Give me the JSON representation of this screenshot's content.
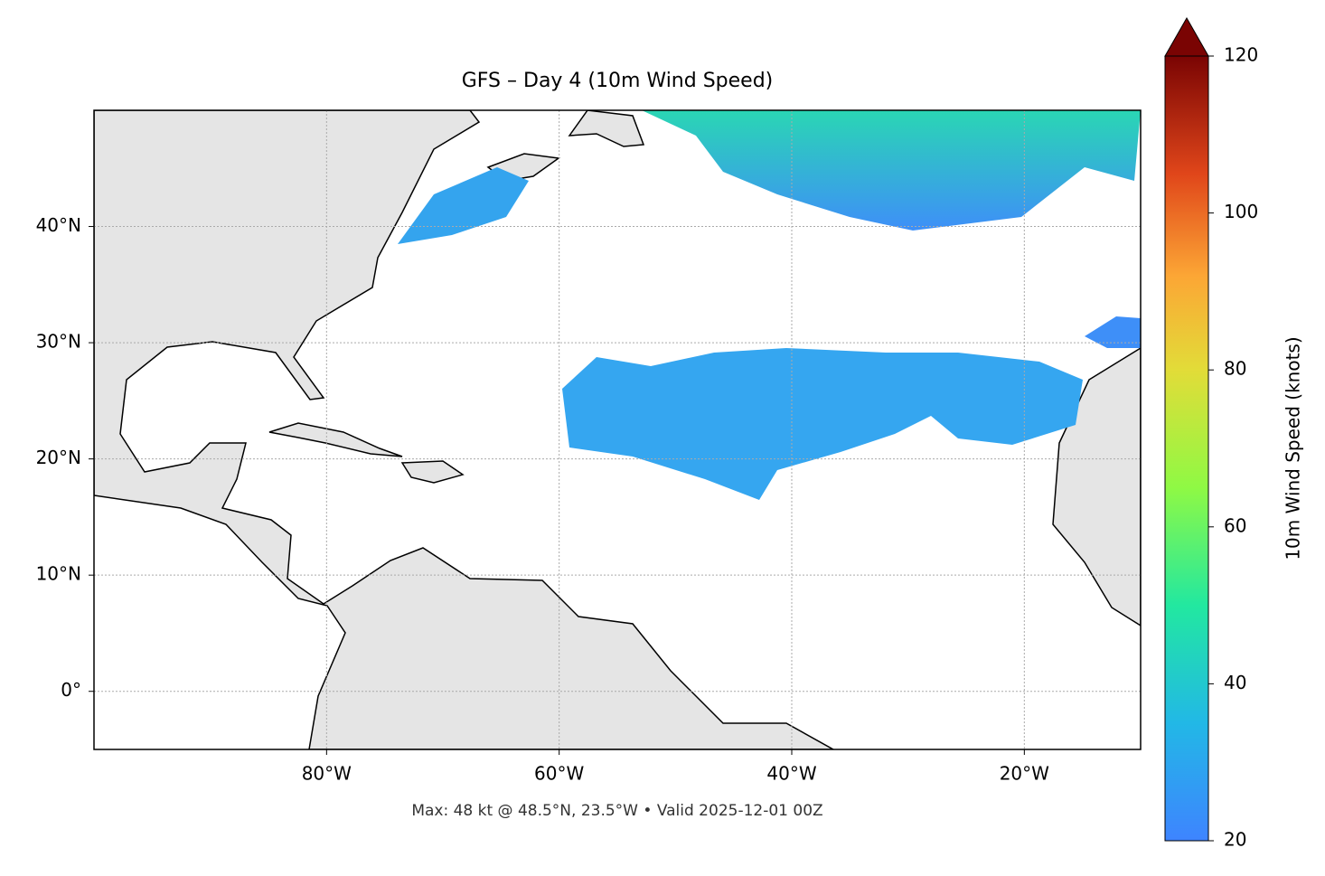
{
  "title": "GFS – Day 4 (10m Wind Speed)",
  "map": {
    "lon_lim": [
      -100,
      -10
    ],
    "lat_lim": [
      -5,
      50
    ],
    "xticks": [
      {
        "value": -80,
        "label": "80°W"
      },
      {
        "value": -60,
        "label": "60°W"
      },
      {
        "value": -40,
        "label": "40°W"
      },
      {
        "value": -20,
        "label": "20°W"
      }
    ],
    "yticks": [
      {
        "value": 0,
        "label": "0°"
      },
      {
        "value": 10,
        "label": "10°N"
      },
      {
        "value": 20,
        "label": "20°N"
      },
      {
        "value": 30,
        "label": "30°N"
      },
      {
        "value": 40,
        "label": "40°N"
      }
    ],
    "grid": true
  },
  "colorbar": {
    "label": "10m Wind Speed (knots)",
    "lim": [
      20,
      120
    ],
    "ticks": [
      20,
      40,
      60,
      80,
      100,
      120
    ],
    "extend": "max"
  },
  "footnote": "Max: 48 kt @ 48.5°N, 23.5°W • Valid 2025-12-01 00Z"
}
